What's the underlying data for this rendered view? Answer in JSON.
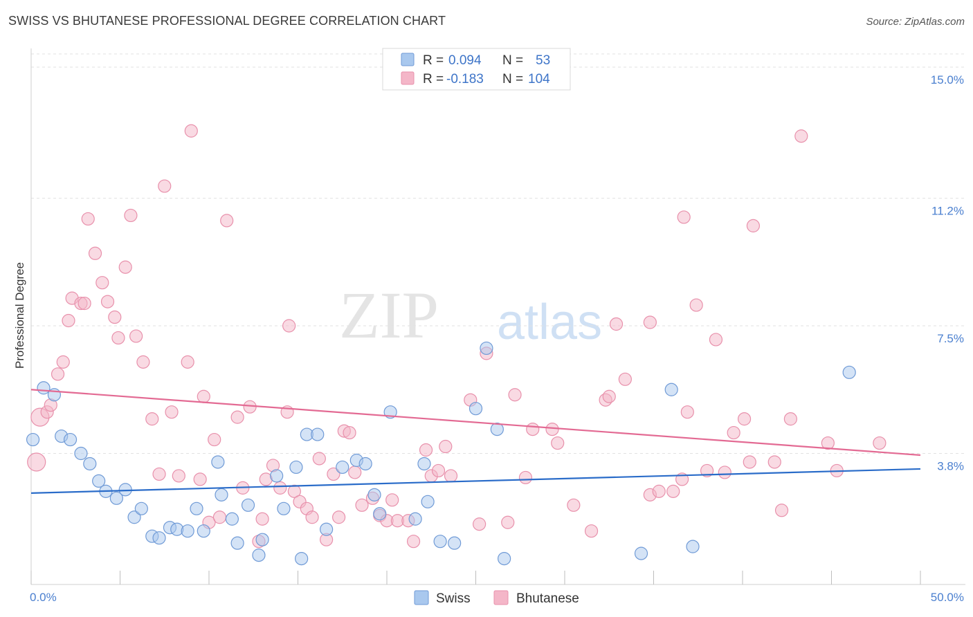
{
  "title": "SWISS VS BHUTANESE PROFESSIONAL DEGREE CORRELATION CHART",
  "source": "Source: ZipAtlas.com",
  "watermark": {
    "part1": "ZIP",
    "part2": "atlas"
  },
  "colors": {
    "swiss_fill": "#a9c8ee",
    "swiss_stroke": "#6f9ad6",
    "swiss_line": "#2a6cc9",
    "bhutanese_fill": "#f4b6c8",
    "bhutanese_stroke": "#e890ab",
    "bhutanese_line": "#e36a93",
    "tick_label": "#4a7fcf",
    "grid": "#e2e2e2"
  },
  "legend_top": [
    {
      "r_label": "R = ",
      "r_value": "0.094",
      "n_label": "N = ",
      "n_value": "53"
    },
    {
      "r_label": "R = ",
      "r_value": "-0.183",
      "n_label": "N = ",
      "n_value": "104"
    }
  ],
  "chart_data": {
    "type": "scatter",
    "title": "SWISS VS BHUTANESE PROFESSIONAL DEGREE CORRELATION CHART",
    "xlabel": "",
    "ylabel": "Professional Degree",
    "xlim": [
      0,
      50
    ],
    "ylim": [
      0,
      15.4
    ],
    "x_tick_labels": [
      "0.0%",
      "50.0%"
    ],
    "y_ticks": [
      3.8,
      7.5,
      11.2,
      15.0
    ],
    "y_tick_labels": [
      "3.8%",
      "7.5%",
      "11.2%",
      "15.0%"
    ],
    "grid": "horizontal dashed",
    "legend_position": "bottom-center",
    "series": [
      {
        "name": "Swiss",
        "trend": {
          "x": [
            0,
            50
          ],
          "y": [
            2.65,
            3.35
          ]
        },
        "points": [
          [
            0.1,
            4.2
          ],
          [
            0.7,
            5.7
          ],
          [
            1.3,
            5.5
          ],
          [
            1.7,
            4.3
          ],
          [
            2.2,
            4.2
          ],
          [
            2.8,
            3.8
          ],
          [
            3.3,
            3.5
          ],
          [
            3.8,
            3.0
          ],
          [
            4.2,
            2.7
          ],
          [
            4.8,
            2.5
          ],
          [
            5.3,
            2.75
          ],
          [
            5.8,
            1.95
          ],
          [
            6.2,
            2.2
          ],
          [
            6.8,
            1.4
          ],
          [
            7.2,
            1.35
          ],
          [
            7.8,
            1.65
          ],
          [
            8.2,
            1.6
          ],
          [
            8.8,
            1.55
          ],
          [
            9.3,
            2.2
          ],
          [
            9.7,
            1.55
          ],
          [
            10.5,
            3.55
          ],
          [
            10.7,
            2.6
          ],
          [
            11.3,
            1.9
          ],
          [
            11.6,
            1.2
          ],
          [
            12.2,
            2.3
          ],
          [
            12.8,
            0.85
          ],
          [
            13.0,
            1.3
          ],
          [
            13.8,
            3.15
          ],
          [
            14.2,
            2.2
          ],
          [
            14.9,
            3.4
          ],
          [
            15.2,
            0.75
          ],
          [
            15.5,
            4.35
          ],
          [
            16.1,
            4.35
          ],
          [
            16.6,
            1.6
          ],
          [
            17.5,
            3.4
          ],
          [
            18.3,
            3.6
          ],
          [
            18.8,
            3.5
          ],
          [
            19.3,
            2.6
          ],
          [
            19.6,
            2.05
          ],
          [
            20.2,
            5.0
          ],
          [
            21.6,
            1.9
          ],
          [
            22.1,
            3.5
          ],
          [
            22.3,
            2.4
          ],
          [
            23.0,
            1.25
          ],
          [
            23.8,
            1.2
          ],
          [
            25.0,
            5.1
          ],
          [
            25.6,
            6.85
          ],
          [
            26.2,
            4.5
          ],
          [
            26.6,
            0.75
          ],
          [
            34.3,
            0.9
          ],
          [
            36.0,
            5.65
          ],
          [
            37.2,
            1.1
          ],
          [
            46.0,
            6.15
          ]
        ],
        "large_points": [
          [
            0.15,
            4.2
          ]
        ]
      },
      {
        "name": "Bhutanese",
        "trend": {
          "x": [
            0,
            50
          ],
          "y": [
            5.65,
            3.75
          ]
        },
        "points": [
          [
            0.3,
            3.55
          ],
          [
            0.5,
            4.85
          ],
          [
            0.9,
            5.0
          ],
          [
            1.1,
            5.2
          ],
          [
            1.5,
            6.1
          ],
          [
            1.8,
            6.45
          ],
          [
            2.1,
            7.65
          ],
          [
            2.3,
            8.3
          ],
          [
            2.8,
            8.15
          ],
          [
            3.0,
            8.15
          ],
          [
            3.2,
            10.6
          ],
          [
            3.6,
            9.6
          ],
          [
            4.0,
            8.75
          ],
          [
            4.3,
            8.2
          ],
          [
            4.7,
            7.75
          ],
          [
            4.9,
            7.15
          ],
          [
            5.3,
            9.2
          ],
          [
            5.6,
            10.7
          ],
          [
            5.9,
            7.2
          ],
          [
            6.3,
            6.45
          ],
          [
            6.8,
            4.8
          ],
          [
            7.2,
            3.2
          ],
          [
            7.5,
            11.55
          ],
          [
            7.9,
            5.0
          ],
          [
            8.3,
            3.15
          ],
          [
            8.8,
            6.45
          ],
          [
            9.0,
            13.15
          ],
          [
            9.5,
            3.05
          ],
          [
            9.7,
            5.45
          ],
          [
            10.0,
            1.8
          ],
          [
            10.3,
            4.2
          ],
          [
            10.6,
            1.95
          ],
          [
            11.0,
            10.55
          ],
          [
            11.6,
            4.85
          ],
          [
            11.9,
            2.8
          ],
          [
            12.3,
            5.15
          ],
          [
            12.8,
            1.25
          ],
          [
            13.0,
            1.9
          ],
          [
            13.2,
            3.05
          ],
          [
            13.6,
            3.45
          ],
          [
            14.0,
            2.8
          ],
          [
            14.4,
            5.0
          ],
          [
            14.5,
            7.5
          ],
          [
            14.8,
            2.7
          ],
          [
            15.1,
            2.4
          ],
          [
            15.5,
            2.2
          ],
          [
            15.8,
            1.95
          ],
          [
            16.2,
            3.65
          ],
          [
            16.6,
            1.3
          ],
          [
            17.0,
            3.2
          ],
          [
            17.3,
            1.95
          ],
          [
            17.6,
            4.45
          ],
          [
            17.9,
            4.4
          ],
          [
            18.2,
            3.25
          ],
          [
            18.6,
            2.3
          ],
          [
            19.2,
            2.5
          ],
          [
            19.6,
            2.0
          ],
          [
            20.0,
            1.85
          ],
          [
            20.3,
            2.45
          ],
          [
            20.6,
            1.85
          ],
          [
            21.2,
            1.85
          ],
          [
            21.5,
            1.25
          ],
          [
            22.2,
            3.9
          ],
          [
            22.5,
            3.15
          ],
          [
            22.9,
            3.3
          ],
          [
            23.3,
            4.0
          ],
          [
            23.6,
            3.15
          ],
          [
            24.7,
            5.35
          ],
          [
            25.2,
            1.75
          ],
          [
            25.6,
            6.7
          ],
          [
            26.8,
            1.8
          ],
          [
            27.2,
            5.5
          ],
          [
            27.8,
            3.1
          ],
          [
            28.2,
            4.5
          ],
          [
            29.3,
            4.5
          ],
          [
            29.6,
            4.1
          ],
          [
            30.5,
            2.3
          ],
          [
            31.5,
            1.55
          ],
          [
            32.3,
            5.35
          ],
          [
            32.5,
            5.45
          ],
          [
            32.9,
            7.55
          ],
          [
            33.4,
            5.95
          ],
          [
            34.8,
            2.6
          ],
          [
            34.8,
            7.6
          ],
          [
            35.3,
            2.7
          ],
          [
            36.1,
            2.7
          ],
          [
            36.6,
            3.05
          ],
          [
            36.7,
            10.65
          ],
          [
            36.9,
            5.0
          ],
          [
            37.4,
            8.1
          ],
          [
            38.0,
            3.3
          ],
          [
            38.5,
            7.1
          ],
          [
            39.0,
            3.25
          ],
          [
            39.5,
            4.4
          ],
          [
            40.1,
            4.8
          ],
          [
            40.4,
            3.55
          ],
          [
            40.6,
            10.4
          ],
          [
            41.8,
            3.55
          ],
          [
            42.2,
            2.15
          ],
          [
            42.7,
            4.8
          ],
          [
            43.3,
            13.0
          ],
          [
            44.8,
            4.1
          ],
          [
            45.3,
            3.3
          ],
          [
            47.7,
            4.1
          ]
        ],
        "large_points": [
          [
            0.3,
            3.55
          ],
          [
            0.5,
            4.85
          ]
        ]
      }
    ]
  },
  "legend_bottom": [
    {
      "label": "Swiss"
    },
    {
      "label": "Bhutanese"
    }
  ]
}
